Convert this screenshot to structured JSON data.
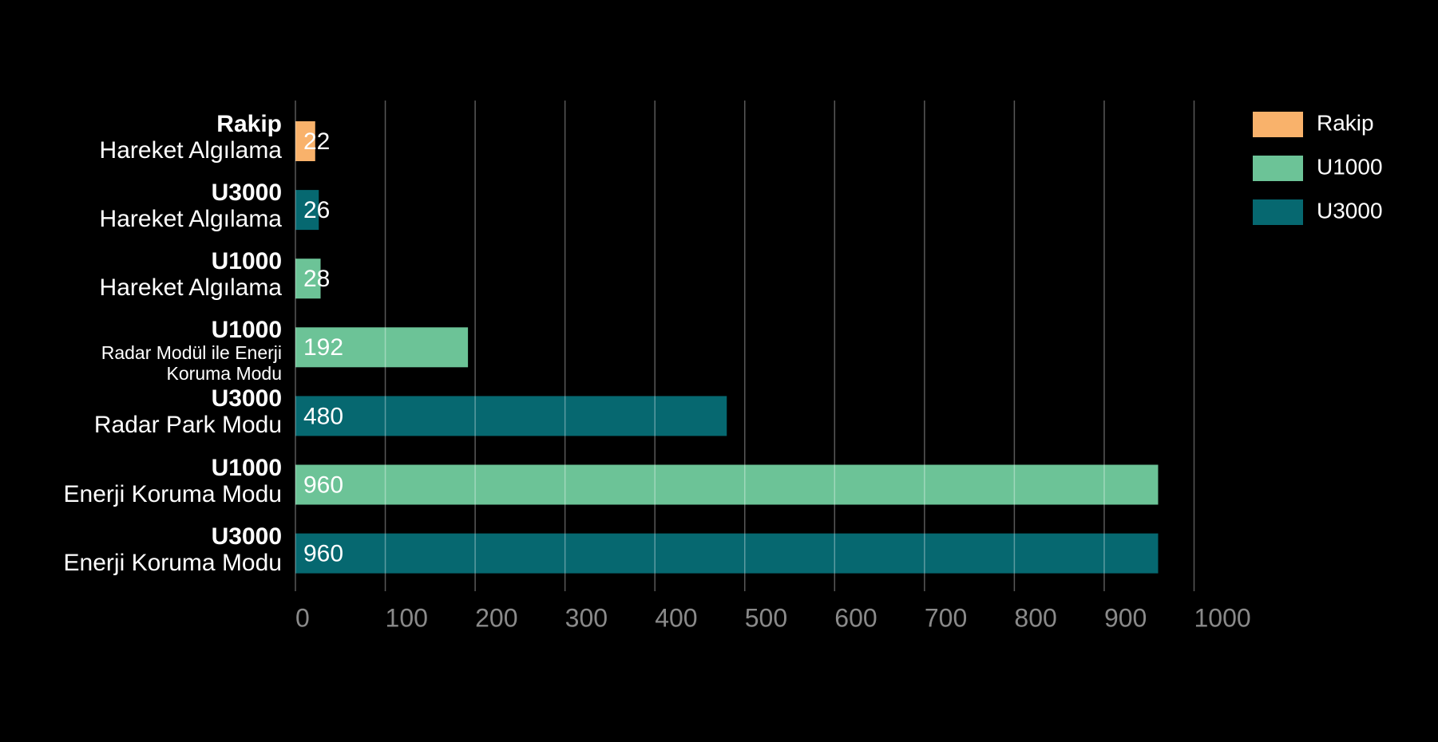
{
  "chart_data": {
    "type": "barh",
    "categories": [
      "Hareket Algılama",
      "Hareket Algılama",
      "Hareket Algılama",
      "Radar Modül ile Enerji Koruma Modu",
      "Radar Park Modu",
      "Enerji Koruma Modu",
      "Enerji Koruma Modu"
    ],
    "series": [
      {
        "name": "Rakip",
        "color": "#f9b26b",
        "values": [
          22,
          null,
          null,
          null,
          null,
          null,
          null
        ]
      },
      {
        "name": "U1000",
        "color": "#6cc397",
        "values": [
          null,
          null,
          28,
          192,
          null,
          960,
          null
        ]
      },
      {
        "name": "U3000",
        "color": "#066870",
        "values": [
          null,
          26,
          null,
          null,
          480,
          null,
          960
        ]
      }
    ],
    "xlim": [
      0,
      1000
    ],
    "xticks": [
      0,
      100,
      200,
      300,
      400,
      500,
      600,
      700,
      800,
      900,
      1000
    ],
    "grid": true,
    "legend": "top-right"
  }
}
